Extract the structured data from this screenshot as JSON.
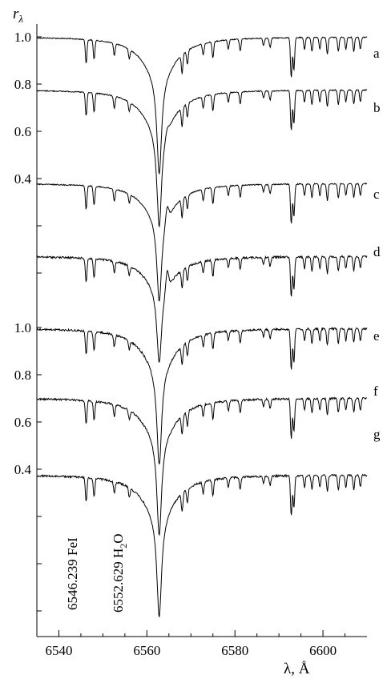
{
  "chart_data": {
    "type": "line",
    "title": "",
    "xlabel": "λ, Å",
    "ylabel": "rλ",
    "ylabel_main": "r",
    "ylabel_sub": "λ",
    "xlim": [
      6535,
      6610
    ],
    "x_ticks": [
      6540,
      6560,
      6580,
      6600
    ],
    "x_tick_labels": [
      "6540",
      "6560",
      "6580",
      "6600"
    ],
    "y_tick_labels_top": [
      "1.0",
      "0.8",
      "0.6",
      "0.4"
    ],
    "y_tick_labels_bottom": [
      "1.0",
      "0.8",
      "0.6",
      "0.4"
    ],
    "grid": false,
    "legend": "none",
    "series": [
      {
        "name": "a",
        "continuum": 1.0,
        "core_depth": 0.58
      },
      {
        "name": "b",
        "continuum": 0.68,
        "core_depth": 0.58,
        "emission": 0.02
      },
      {
        "name": "c",
        "continuum": 0.4,
        "core_depth": 0.5,
        "emission": 0.06
      },
      {
        "name": "d",
        "continuum": 0.13,
        "core_depth": 0.45,
        "emission": 0.08
      },
      {
        "name": "e",
        "continuum": 1.0,
        "core_depth": 0.58,
        "emission": 0.0
      },
      {
        "name": "f",
        "continuum": 0.68,
        "core_depth": 0.58,
        "emission": 0.0
      },
      {
        "name": "g",
        "continuum": 0.4,
        "core_depth": 0.6,
        "emission": 0.0
      }
    ],
    "absorption_lines": [
      6546.2,
      6548.0,
      6552.6,
      6556.0,
      6568.0,
      6569.2,
      6572.8,
      6575.0,
      6578.5,
      6581.2,
      6586.5,
      6588.0,
      6592.8,
      6593.4,
      6595.8,
      6597.5,
      6599.3,
      6601.0,
      6603.5,
      6605.2,
      6607.0,
      6608.5
    ],
    "annotations": [
      {
        "text": "6546.239 FeI",
        "x": 6546.239
      },
      {
        "text": "6552.629 H",
        "sub": "2",
        "after": "O",
        "x": 6552.629
      }
    ]
  }
}
